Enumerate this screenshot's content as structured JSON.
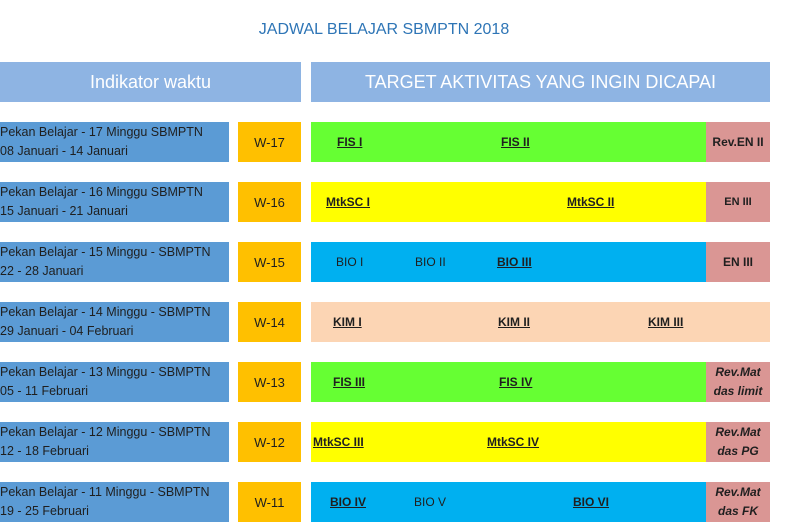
{
  "title": "JADWAL BELAJAR SBMPTN 2018",
  "header": {
    "left": "Indikator waktu",
    "right": "TARGET AKTIVITAS YANG INGIN DICAPAI"
  },
  "rows": [
    {
      "line1": "Pekan Belajar - 17 Minggu SBMPTN",
      "line2": "08 Januari - 14 Januari",
      "week": "W-17",
      "color": "#66ff33",
      "items": [
        "FIS I",
        "FIS II"
      ],
      "review": [
        "Rev.EN II"
      ]
    },
    {
      "line1": "Pekan Belajar - 16 Minggu SBMPTN",
      "line2": "15 Januari - 21 Januari",
      "week": "W-16",
      "color": "#ffff00",
      "items": [
        "MtkSC I",
        "MtkSC II"
      ],
      "review": [
        "EN III"
      ]
    },
    {
      "line1": "Pekan Belajar - 15 Minggu - SBMPTN",
      "line2": "22 - 28 Januari",
      "week": "W-15",
      "color": "#00b0f0",
      "items": [
        "BIO I",
        "BIO II",
        "BIO III"
      ],
      "review": [
        "EN III"
      ]
    },
    {
      "line1": "Pekan Belajar - 14 Minggu - SBMPTN",
      "line2": "29 Januari - 04 Februari",
      "week": "W-14",
      "color": "#fcd5b4",
      "items": [
        "KIM I",
        "KIM II",
        "KIM III"
      ],
      "review": []
    },
    {
      "line1": "Pekan Belajar - 13 Minggu - SBMPTN",
      "line2": "05 - 11 Februari",
      "week": "W-13",
      "color": "#66ff33",
      "items": [
        "FIS III",
        "FIS IV"
      ],
      "review": [
        "Rev.Mat",
        "das limit"
      ]
    },
    {
      "line1": "Pekan Belajar - 12 Minggu - SBMPTN",
      "line2": "12 - 18 Februari",
      "week": "W-12",
      "color": "#ffff00",
      "items": [
        "MtkSC III",
        "MtkSC IV"
      ],
      "review": [
        "Rev.Mat",
        "das PG"
      ]
    },
    {
      "line1": "Pekan Belajar - 11 Minggu - SBMPTN",
      "line2": "19 - 25 Februari",
      "week": "W-11",
      "color": "#00b0f0",
      "items": [
        "BIO IV",
        "BIO V",
        "BIO VI"
      ],
      "review": [
        "Rev.Mat",
        "das FK"
      ]
    }
  ]
}
